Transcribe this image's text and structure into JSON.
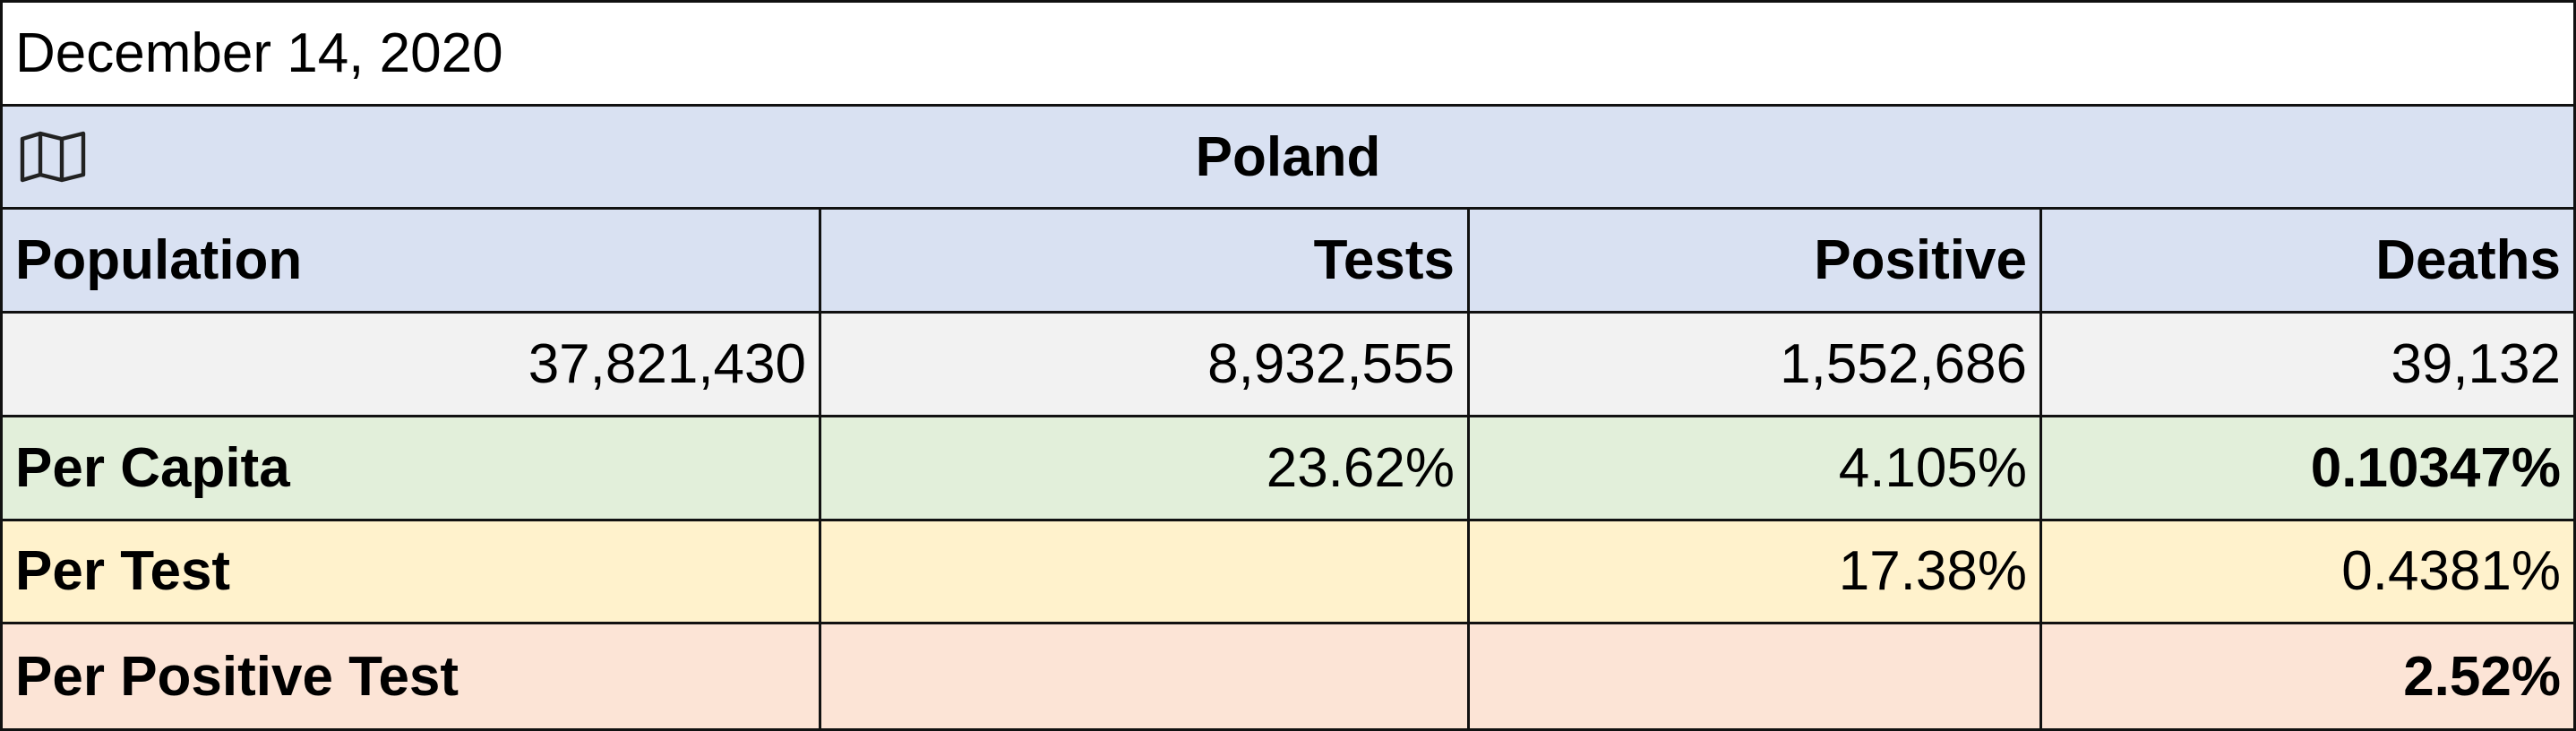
{
  "date": "December 14, 2020",
  "title": "Poland",
  "table": {
    "header": [
      "Population",
      "Tests",
      "Positive",
      "Deaths"
    ],
    "values": [
      "37,821,430",
      "8,932,555",
      "1,552,686",
      "39,132"
    ],
    "rows": [
      {
        "label": "Per Capita",
        "cells": [
          "23.62%",
          "4.105%",
          "0.10347%"
        ]
      },
      {
        "label": "Per Test",
        "cells": [
          "17.38%",
          "0.4381%"
        ]
      },
      {
        "label": "Per Positive Test",
        "cells": [
          "2.52%"
        ]
      }
    ]
  }
}
